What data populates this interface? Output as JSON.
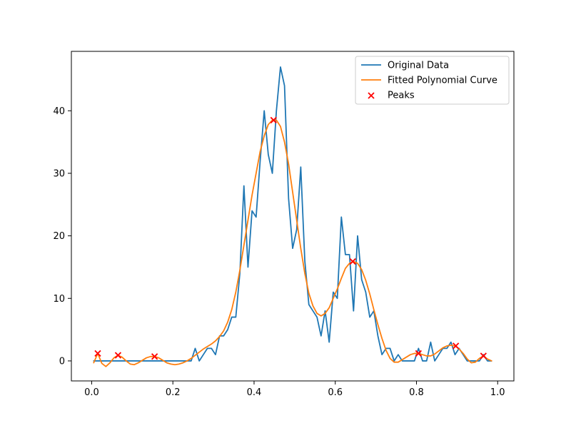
{
  "chart_data": {
    "type": "line",
    "title": "",
    "xlabel": "",
    "ylabel": "",
    "xlim": [
      -0.05,
      1.04
    ],
    "ylim": [
      -3.2,
      49.5
    ],
    "xticks": [
      0.0,
      0.2,
      0.4,
      0.6,
      0.8,
      1.0
    ],
    "xtick_labels": [
      "0.0",
      "0.2",
      "0.4",
      "0.6",
      "0.8",
      "1.0"
    ],
    "yticks": [
      0,
      10,
      20,
      30,
      40
    ],
    "ytick_labels": [
      "0",
      "10",
      "20",
      "30",
      "40"
    ],
    "grid": false,
    "legend_position": "top-right",
    "series": [
      {
        "name": "Original Data",
        "kind": "line",
        "color": "#1f77b4",
        "x": [
          0.005,
          0.015,
          0.025,
          0.035,
          0.045,
          0.055,
          0.065,
          0.075,
          0.085,
          0.095,
          0.105,
          0.115,
          0.125,
          0.135,
          0.145,
          0.155,
          0.165,
          0.175,
          0.185,
          0.195,
          0.205,
          0.215,
          0.225,
          0.235,
          0.245,
          0.255,
          0.265,
          0.275,
          0.285,
          0.295,
          0.305,
          0.315,
          0.325,
          0.335,
          0.345,
          0.355,
          0.365,
          0.375,
          0.385,
          0.395,
          0.405,
          0.415,
          0.425,
          0.435,
          0.445,
          0.455,
          0.465,
          0.475,
          0.485,
          0.495,
          0.505,
          0.515,
          0.525,
          0.535,
          0.545,
          0.555,
          0.565,
          0.575,
          0.585,
          0.595,
          0.605,
          0.615,
          0.625,
          0.635,
          0.645,
          0.655,
          0.665,
          0.675,
          0.685,
          0.695,
          0.705,
          0.715,
          0.725,
          0.735,
          0.745,
          0.755,
          0.765,
          0.775,
          0.785,
          0.795,
          0.805,
          0.815,
          0.825,
          0.835,
          0.845,
          0.855,
          0.865,
          0.875,
          0.885,
          0.895,
          0.905,
          0.915,
          0.925,
          0.935,
          0.945,
          0.955,
          0.965,
          0.975,
          0.985
        ],
        "y": [
          0,
          0,
          0,
          0,
          0,
          0,
          0,
          0,
          0,
          0,
          0,
          0,
          0,
          0,
          0,
          0,
          0,
          0,
          0,
          0,
          0,
          0,
          0,
          0,
          0,
          2,
          0,
          1,
          2,
          2,
          1,
          4,
          4,
          5,
          7,
          7,
          14,
          28,
          15,
          24,
          23,
          32,
          40,
          33,
          30,
          40,
          47,
          44,
          26,
          18,
          21,
          31,
          16,
          9,
          8,
          7,
          4,
          8,
          3,
          11,
          10,
          23,
          17,
          17,
          8,
          20,
          13,
          11,
          7,
          8,
          4,
          1,
          2,
          2,
          0,
          1,
          0,
          0,
          0,
          0,
          2,
          0,
          0,
          3,
          0,
          1,
          2,
          2,
          3,
          1,
          2,
          1,
          0,
          0,
          0,
          0,
          1,
          0,
          0
        ]
      },
      {
        "name": "Fitted Polynomial Curve",
        "kind": "line",
        "color": "#ff7f0e",
        "x": [
          0.005,
          0.015,
          0.025,
          0.035,
          0.045,
          0.055,
          0.065,
          0.075,
          0.085,
          0.095,
          0.105,
          0.115,
          0.125,
          0.135,
          0.145,
          0.155,
          0.165,
          0.175,
          0.185,
          0.195,
          0.205,
          0.215,
          0.225,
          0.235,
          0.245,
          0.255,
          0.265,
          0.275,
          0.285,
          0.295,
          0.305,
          0.315,
          0.325,
          0.335,
          0.345,
          0.355,
          0.365,
          0.375,
          0.385,
          0.395,
          0.405,
          0.415,
          0.425,
          0.435,
          0.445,
          0.455,
          0.465,
          0.475,
          0.485,
          0.495,
          0.505,
          0.515,
          0.525,
          0.535,
          0.545,
          0.555,
          0.565,
          0.575,
          0.585,
          0.595,
          0.605,
          0.615,
          0.625,
          0.635,
          0.645,
          0.655,
          0.665,
          0.675,
          0.685,
          0.695,
          0.705,
          0.715,
          0.725,
          0.735,
          0.745,
          0.755,
          0.765,
          0.775,
          0.785,
          0.795,
          0.805,
          0.815,
          0.825,
          0.835,
          0.845,
          0.855,
          0.865,
          0.875,
          0.885,
          0.895,
          0.905,
          0.915,
          0.925,
          0.935,
          0.945,
          0.955,
          0.965,
          0.975,
          0.985
        ],
        "y": [
          -0.3,
          1.2,
          -0.4,
          -0.9,
          -0.3,
          0.5,
          0.9,
          0.6,
          0.0,
          -0.5,
          -0.6,
          -0.3,
          0.1,
          0.5,
          0.7,
          0.7,
          0.5,
          0.1,
          -0.3,
          -0.5,
          -0.6,
          -0.5,
          -0.3,
          0.0,
          0.4,
          0.9,
          1.4,
          1.9,
          2.3,
          2.7,
          3.2,
          3.9,
          4.8,
          6.2,
          8.2,
          11.0,
          14.5,
          18.5,
          22.5,
          26.5,
          30.0,
          33.5,
          36.0,
          37.8,
          38.5,
          38.5,
          37.5,
          35.0,
          31.5,
          27.0,
          22.5,
          18.0,
          14.0,
          10.8,
          8.8,
          7.6,
          7.2,
          7.6,
          8.5,
          10.0,
          11.5,
          13.2,
          14.8,
          15.6,
          15.9,
          15.6,
          14.6,
          12.9,
          10.7,
          8.2,
          5.8,
          3.6,
          1.7,
          0.4,
          -0.2,
          -0.2,
          0.2,
          0.6,
          1.0,
          1.2,
          1.2,
          1.0,
          0.8,
          0.8,
          1.1,
          1.6,
          2.1,
          2.4,
          2.5,
          2.4,
          1.9,
          1.2,
          0.3,
          -0.3,
          -0.2,
          0.4,
          0.8,
          0.3,
          0.0
        ]
      },
      {
        "name": "Peaks",
        "kind": "scatter",
        "marker": "x",
        "color": "#ff0000",
        "x": [
          0.015,
          0.065,
          0.155,
          0.448,
          0.643,
          0.805,
          0.897,
          0.965
        ],
        "y": [
          1.2,
          0.9,
          0.7,
          38.5,
          15.9,
          1.2,
          2.4,
          0.8
        ]
      }
    ]
  }
}
